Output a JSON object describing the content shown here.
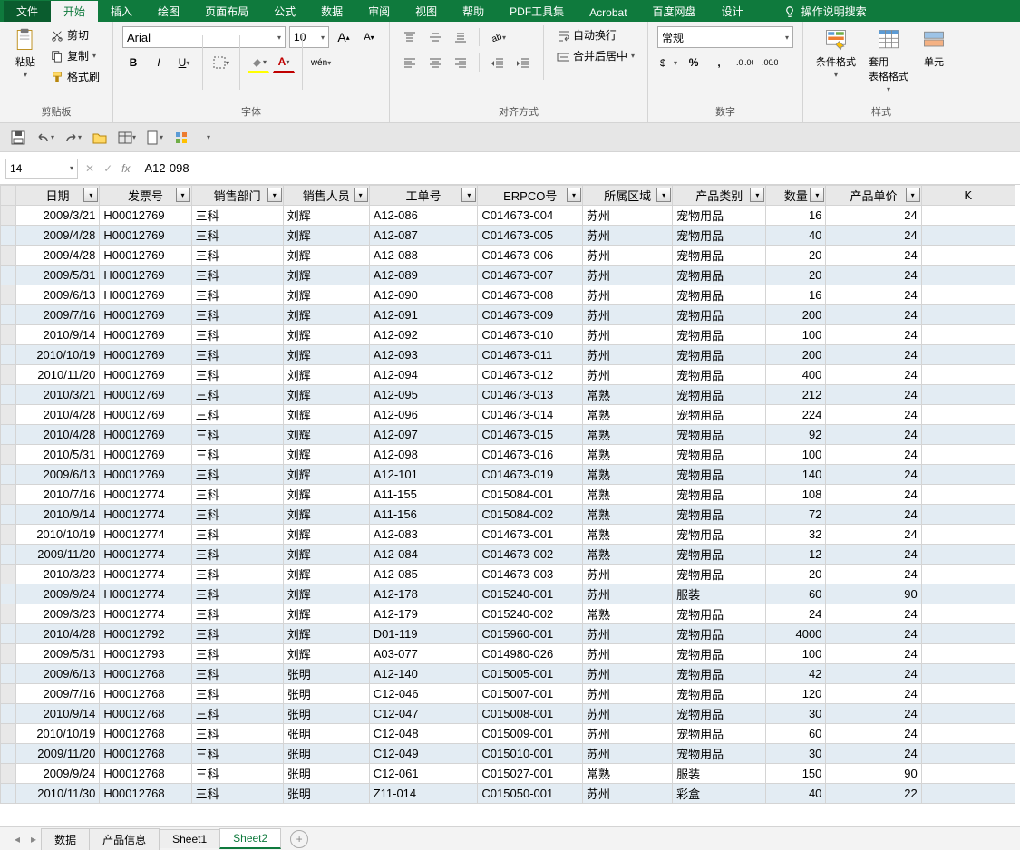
{
  "tabs": {
    "file": "文件",
    "home": "开始",
    "insert": "插入",
    "draw": "绘图",
    "layout": "页面布局",
    "formula": "公式",
    "data": "数据",
    "review": "审阅",
    "view": "视图",
    "help": "帮助",
    "pdf": "PDF工具集",
    "acrobat": "Acrobat",
    "baidu": "百度网盘",
    "design": "设计",
    "search": "操作说明搜索"
  },
  "ribbon": {
    "clipboard": {
      "paste": "粘贴",
      "cut": "剪切",
      "copy": "复制",
      "fmtpainter": "格式刷",
      "group": "剪贴板"
    },
    "font": {
      "family": "Arial",
      "size": "10",
      "group": "字体"
    },
    "align": {
      "wrap": "自动换行",
      "merge": "合并后居中",
      "group": "对齐方式"
    },
    "number": {
      "fmt": "常规",
      "group": "数字"
    },
    "styles": {
      "condfmt": "条件格式",
      "tablefmt": "套用\n表格格式",
      "cell": "单元",
      "group": "样式"
    }
  },
  "namebox": "14",
  "formula": "A12-098",
  "columns": [
    "日期",
    "发票号",
    "销售部门",
    "销售人员",
    "工单号",
    "ERPCO号",
    "所属区域",
    "产品类别",
    "数量",
    "产品单价",
    "K"
  ],
  "rows": [
    [
      "2009/3/21",
      "H00012769",
      "三科",
      "刘辉",
      "A12-086",
      "C014673-004",
      "苏州",
      "宠物用品",
      "16",
      "24"
    ],
    [
      "2009/4/28",
      "H00012769",
      "三科",
      "刘辉",
      "A12-087",
      "C014673-005",
      "苏州",
      "宠物用品",
      "40",
      "24"
    ],
    [
      "2009/4/28",
      "H00012769",
      "三科",
      "刘辉",
      "A12-088",
      "C014673-006",
      "苏州",
      "宠物用品",
      "20",
      "24"
    ],
    [
      "2009/5/31",
      "H00012769",
      "三科",
      "刘辉",
      "A12-089",
      "C014673-007",
      "苏州",
      "宠物用品",
      "20",
      "24"
    ],
    [
      "2009/6/13",
      "H00012769",
      "三科",
      "刘辉",
      "A12-090",
      "C014673-008",
      "苏州",
      "宠物用品",
      "16",
      "24"
    ],
    [
      "2009/7/16",
      "H00012769",
      "三科",
      "刘辉",
      "A12-091",
      "C014673-009",
      "苏州",
      "宠物用品",
      "200",
      "24"
    ],
    [
      "2010/9/14",
      "H00012769",
      "三科",
      "刘辉",
      "A12-092",
      "C014673-010",
      "苏州",
      "宠物用品",
      "100",
      "24"
    ],
    [
      "2010/10/19",
      "H00012769",
      "三科",
      "刘辉",
      "A12-093",
      "C014673-011",
      "苏州",
      "宠物用品",
      "200",
      "24"
    ],
    [
      "2010/11/20",
      "H00012769",
      "三科",
      "刘辉",
      "A12-094",
      "C014673-012",
      "苏州",
      "宠物用品",
      "400",
      "24"
    ],
    [
      "2010/3/21",
      "H00012769",
      "三科",
      "刘辉",
      "A12-095",
      "C014673-013",
      "常熟",
      "宠物用品",
      "212",
      "24"
    ],
    [
      "2010/4/28",
      "H00012769",
      "三科",
      "刘辉",
      "A12-096",
      "C014673-014",
      "常熟",
      "宠物用品",
      "224",
      "24"
    ],
    [
      "2010/4/28",
      "H00012769",
      "三科",
      "刘辉",
      "A12-097",
      "C014673-015",
      "常熟",
      "宠物用品",
      "92",
      "24"
    ],
    [
      "2010/5/31",
      "H00012769",
      "三科",
      "刘辉",
      "A12-098",
      "C014673-016",
      "常熟",
      "宠物用品",
      "100",
      "24"
    ],
    [
      "2009/6/13",
      "H00012769",
      "三科",
      "刘辉",
      "A12-101",
      "C014673-019",
      "常熟",
      "宠物用品",
      "140",
      "24"
    ],
    [
      "2010/7/16",
      "H00012774",
      "三科",
      "刘辉",
      "A11-155",
      "C015084-001",
      "常熟",
      "宠物用品",
      "108",
      "24"
    ],
    [
      "2010/9/14",
      "H00012774",
      "三科",
      "刘辉",
      "A11-156",
      "C015084-002",
      "常熟",
      "宠物用品",
      "72",
      "24"
    ],
    [
      "2010/10/19",
      "H00012774",
      "三科",
      "刘辉",
      "A12-083",
      "C014673-001",
      "常熟",
      "宠物用品",
      "32",
      "24"
    ],
    [
      "2009/11/20",
      "H00012774",
      "三科",
      "刘辉",
      "A12-084",
      "C014673-002",
      "常熟",
      "宠物用品",
      "12",
      "24"
    ],
    [
      "2010/3/23",
      "H00012774",
      "三科",
      "刘辉",
      "A12-085",
      "C014673-003",
      "苏州",
      "宠物用品",
      "20",
      "24"
    ],
    [
      "2009/9/24",
      "H00012774",
      "三科",
      "刘辉",
      "A12-178",
      "C015240-001",
      "苏州",
      "服装",
      "60",
      "90"
    ],
    [
      "2009/3/23",
      "H00012774",
      "三科",
      "刘辉",
      "A12-179",
      "C015240-002",
      "常熟",
      "宠物用品",
      "24",
      "24"
    ],
    [
      "2010/4/28",
      "H00012792",
      "三科",
      "刘辉",
      "D01-119",
      "C015960-001",
      "苏州",
      "宠物用品",
      "4000",
      "24"
    ],
    [
      "2009/5/31",
      "H00012793",
      "三科",
      "刘辉",
      "A03-077",
      "C014980-026",
      "苏州",
      "宠物用品",
      "100",
      "24"
    ],
    [
      "2009/6/13",
      "H00012768",
      "三科",
      "张明",
      "A12-140",
      "C015005-001",
      "苏州",
      "宠物用品",
      "42",
      "24"
    ],
    [
      "2009/7/16",
      "H00012768",
      "三科",
      "张明",
      "C12-046",
      "C015007-001",
      "苏州",
      "宠物用品",
      "120",
      "24"
    ],
    [
      "2010/9/14",
      "H00012768",
      "三科",
      "张明",
      "C12-047",
      "C015008-001",
      "苏州",
      "宠物用品",
      "30",
      "24"
    ],
    [
      "2010/10/19",
      "H00012768",
      "三科",
      "张明",
      "C12-048",
      "C015009-001",
      "苏州",
      "宠物用品",
      "60",
      "24"
    ],
    [
      "2009/11/20",
      "H00012768",
      "三科",
      "张明",
      "C12-049",
      "C015010-001",
      "苏州",
      "宠物用品",
      "30",
      "24"
    ],
    [
      "2009/9/24",
      "H00012768",
      "三科",
      "张明",
      "C12-061",
      "C015027-001",
      "常熟",
      "服装",
      "150",
      "90"
    ],
    [
      "2010/11/30",
      "H00012768",
      "三科",
      "张明",
      "Z11-014",
      "C015050-001",
      "苏州",
      "彩盒",
      "40",
      "22"
    ]
  ],
  "sheets": {
    "s1": "数据",
    "s2": "产品信息",
    "s3": "Sheet1",
    "s4": "Sheet2"
  },
  "colors": {
    "ribbon_green": "#0f7a3d",
    "band": "#e3ecf3",
    "grid_border": "#d4d4d4",
    "header_bg": "#e8e8e8"
  }
}
